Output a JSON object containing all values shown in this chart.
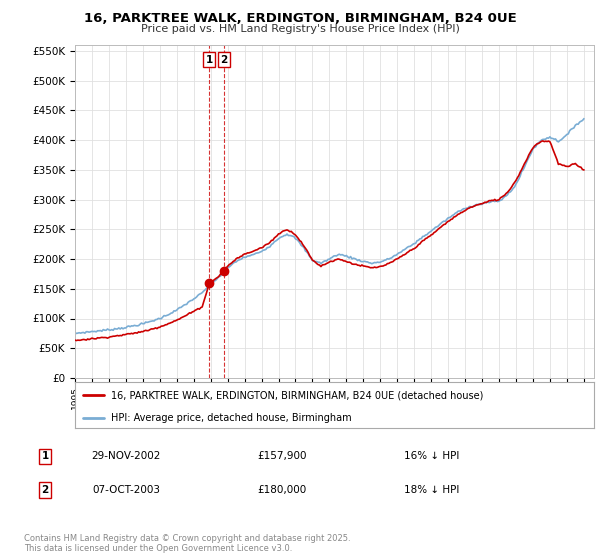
{
  "title_line1": "16, PARKTREE WALK, ERDINGTON, BIRMINGHAM, B24 0UE",
  "title_line2": "Price paid vs. HM Land Registry's House Price Index (HPI)",
  "property_label": "16, PARKTREE WALK, ERDINGTON, BIRMINGHAM, B24 0UE (detached house)",
  "hpi_label": "HPI: Average price, detached house, Birmingham",
  "property_color": "#cc0000",
  "hpi_color": "#7aadd4",
  "transactions": [
    {
      "id": 1,
      "date": "29-NOV-2002",
      "price": 157900,
      "hpi_rel": "16% ↓ HPI",
      "x_year": 2002.91
    },
    {
      "id": 2,
      "date": "07-OCT-2003",
      "price": 180000,
      "hpi_rel": "18% ↓ HPI",
      "x_year": 2003.77
    }
  ],
  "footer": "Contains HM Land Registry data © Crown copyright and database right 2025.\nThis data is licensed under the Open Government Licence v3.0.",
  "ylim": [
    0,
    560000
  ],
  "yticks": [
    0,
    50000,
    100000,
    150000,
    200000,
    250000,
    300000,
    350000,
    400000,
    450000,
    500000,
    550000
  ],
  "ytick_labels": [
    "£0",
    "£50K",
    "£100K",
    "£150K",
    "£200K",
    "£250K",
    "£300K",
    "£350K",
    "£400K",
    "£450K",
    "£500K",
    "£550K"
  ],
  "xtick_years": [
    1995,
    1996,
    1997,
    1998,
    1999,
    2000,
    2001,
    2002,
    2003,
    2004,
    2005,
    2006,
    2007,
    2008,
    2009,
    2010,
    2011,
    2012,
    2013,
    2014,
    2015,
    2016,
    2017,
    2018,
    2019,
    2020,
    2021,
    2022,
    2023,
    2024,
    2025
  ],
  "bg_color": "#ffffff",
  "grid_color": "#e0e0e0",
  "vline_color": "#cc0000",
  "hpi_anchors": [
    [
      1995.0,
      75000
    ],
    [
      1996.0,
      78000
    ],
    [
      1997.0,
      81000
    ],
    [
      1998.0,
      85000
    ],
    [
      1999.0,
      91000
    ],
    [
      2000.0,
      100000
    ],
    [
      2001.0,
      114000
    ],
    [
      2002.0,
      133000
    ],
    [
      2002.5,
      143000
    ],
    [
      2003.0,
      158000
    ],
    [
      2003.5,
      170000
    ],
    [
      2004.0,
      185000
    ],
    [
      2004.5,
      196000
    ],
    [
      2005.0,
      203000
    ],
    [
      2005.5,
      207000
    ],
    [
      2006.0,
      213000
    ],
    [
      2006.5,
      222000
    ],
    [
      2007.0,
      235000
    ],
    [
      2007.5,
      242000
    ],
    [
      2008.0,
      235000
    ],
    [
      2008.5,
      218000
    ],
    [
      2009.0,
      198000
    ],
    [
      2009.5,
      193000
    ],
    [
      2010.0,
      200000
    ],
    [
      2010.5,
      208000
    ],
    [
      2011.0,
      205000
    ],
    [
      2011.5,
      200000
    ],
    [
      2012.0,
      196000
    ],
    [
      2012.5,
      193000
    ],
    [
      2013.0,
      195000
    ],
    [
      2013.5,
      200000
    ],
    [
      2014.0,
      208000
    ],
    [
      2014.5,
      217000
    ],
    [
      2015.0,
      226000
    ],
    [
      2015.5,
      237000
    ],
    [
      2016.0,
      247000
    ],
    [
      2016.5,
      258000
    ],
    [
      2017.0,
      268000
    ],
    [
      2017.5,
      278000
    ],
    [
      2018.0,
      285000
    ],
    [
      2018.5,
      290000
    ],
    [
      2019.0,
      293000
    ],
    [
      2019.5,
      296000
    ],
    [
      2020.0,
      297000
    ],
    [
      2020.5,
      308000
    ],
    [
      2021.0,
      325000
    ],
    [
      2021.5,
      355000
    ],
    [
      2022.0,
      385000
    ],
    [
      2022.5,
      400000
    ],
    [
      2023.0,
      405000
    ],
    [
      2023.5,
      398000
    ],
    [
      2024.0,
      408000
    ],
    [
      2024.5,
      425000
    ],
    [
      2025.0,
      435000
    ]
  ],
  "prop_anchors": [
    [
      1995.0,
      63000
    ],
    [
      1996.0,
      66000
    ],
    [
      1997.0,
      69000
    ],
    [
      1998.0,
      73000
    ],
    [
      1999.0,
      78000
    ],
    [
      2000.0,
      86000
    ],
    [
      2001.0,
      97000
    ],
    [
      2002.0,
      112000
    ],
    [
      2002.5,
      120000
    ],
    [
      2002.91,
      157900
    ],
    [
      2003.0,
      160000
    ],
    [
      2003.5,
      172000
    ],
    [
      2003.77,
      180000
    ],
    [
      2004.0,
      188000
    ],
    [
      2004.5,
      200000
    ],
    [
      2005.0,
      208000
    ],
    [
      2005.5,
      213000
    ],
    [
      2006.0,
      219000
    ],
    [
      2006.5,
      228000
    ],
    [
      2007.0,
      242000
    ],
    [
      2007.5,
      250000
    ],
    [
      2008.0,
      241000
    ],
    [
      2008.5,
      222000
    ],
    [
      2009.0,
      198000
    ],
    [
      2009.5,
      188000
    ],
    [
      2010.0,
      195000
    ],
    [
      2010.5,
      200000
    ],
    [
      2011.0,
      196000
    ],
    [
      2011.5,
      191000
    ],
    [
      2012.0,
      188000
    ],
    [
      2012.5,
      185000
    ],
    [
      2013.0,
      187000
    ],
    [
      2013.5,
      192000
    ],
    [
      2014.0,
      200000
    ],
    [
      2014.5,
      209000
    ],
    [
      2015.0,
      218000
    ],
    [
      2015.5,
      230000
    ],
    [
      2016.0,
      240000
    ],
    [
      2016.5,
      252000
    ],
    [
      2017.0,
      263000
    ],
    [
      2017.5,
      273000
    ],
    [
      2018.0,
      282000
    ],
    [
      2018.5,
      289000
    ],
    [
      2019.0,
      293000
    ],
    [
      2019.5,
      298000
    ],
    [
      2020.0,
      300000
    ],
    [
      2020.5,
      312000
    ],
    [
      2021.0,
      332000
    ],
    [
      2021.5,
      360000
    ],
    [
      2022.0,
      388000
    ],
    [
      2022.5,
      398000
    ],
    [
      2023.0,
      398000
    ],
    [
      2023.5,
      360000
    ],
    [
      2024.0,
      355000
    ],
    [
      2024.5,
      360000
    ],
    [
      2025.0,
      350000
    ]
  ]
}
